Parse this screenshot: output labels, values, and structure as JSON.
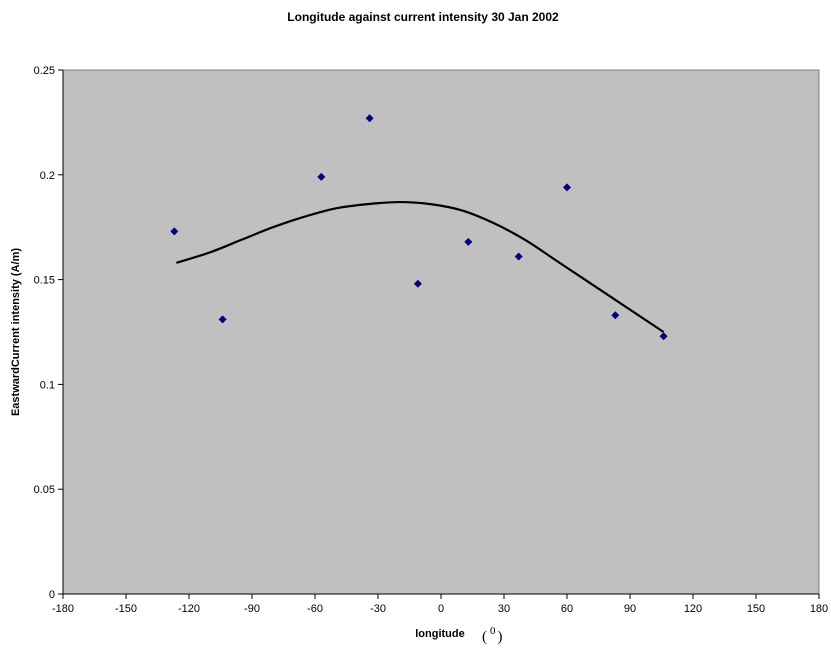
{
  "chart_data": {
    "type": "scatter",
    "title": "Longitude against current intensity 30 Jan 2002",
    "xlabel": "longitude",
    "xlabel_unit": "( 0 )",
    "ylabel": "EastwardCurrent intensity (A/m)",
    "xlim": [
      -180,
      180
    ],
    "ylim": [
      0,
      0.25
    ],
    "x_ticks": [
      "-180",
      "-150",
      "-120",
      "-90",
      "-60",
      "-30",
      "0",
      "30",
      "60",
      "90",
      "120",
      "150",
      "180"
    ],
    "y_ticks": [
      "0",
      "0.05",
      "0.1",
      "0.15",
      "0.2",
      "0.25"
    ],
    "grid": false,
    "plot_background": "#c0c0c0",
    "marker_color": "#000080",
    "trendline_color": "#000000",
    "series": [
      {
        "x": [
          -127,
          -104,
          -57,
          -34,
          -11,
          13,
          37,
          60,
          83,
          106
        ],
        "y": [
          0.173,
          0.131,
          0.199,
          0.227,
          0.148,
          0.168,
          0.161,
          0.194,
          0.133,
          0.123
        ]
      }
    ],
    "trendline": {
      "type": "polynomial",
      "x": [
        -126,
        -110,
        -95,
        -80,
        -65,
        -50,
        -35,
        -20,
        -5,
        10,
        25,
        40,
        55,
        70,
        85,
        100,
        106
      ],
      "y": [
        0.158,
        0.163,
        0.169,
        0.175,
        0.18,
        0.184,
        0.186,
        0.187,
        0.186,
        0.183,
        0.177,
        0.169,
        0.159,
        0.149,
        0.139,
        0.129,
        0.125
      ]
    }
  }
}
